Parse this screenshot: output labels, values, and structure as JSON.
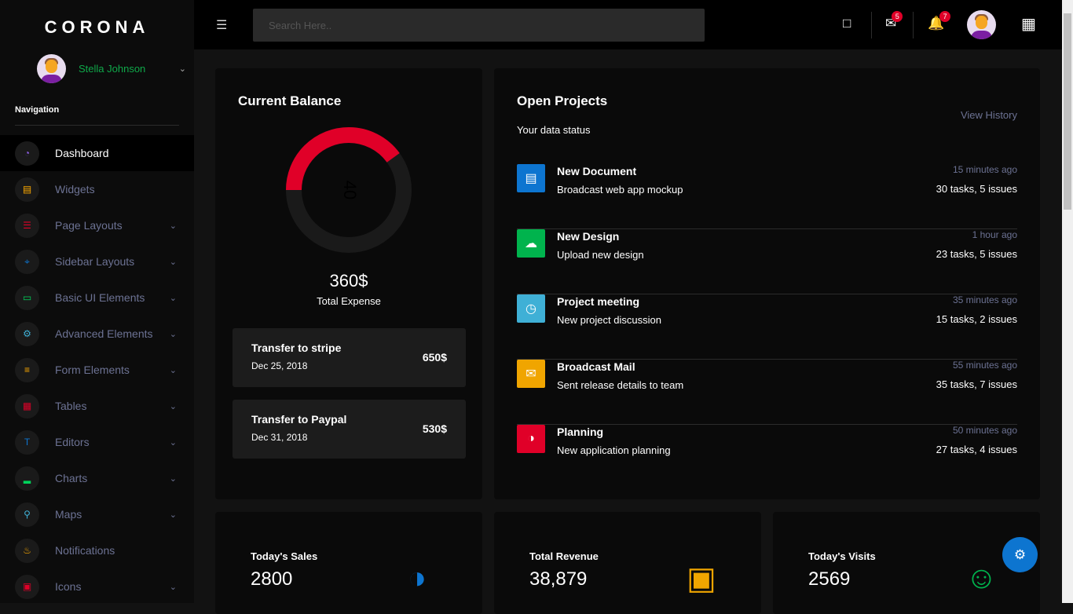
{
  "sidebar": {
    "brand": "CORONA",
    "user_name": "Stella Johnson",
    "nav_title": "Navigation",
    "items": [
      {
        "label": "Dashboard",
        "icon": "speedometer-icon",
        "color": "#8f5fe8",
        "active": true
      },
      {
        "label": "Widgets",
        "icon": "widgets-icon",
        "color": "#ffab00"
      },
      {
        "label": "Page Layouts",
        "icon": "layouts-icon",
        "color": "#e00028"
      },
      {
        "label": "Sidebar Layouts",
        "icon": "crosshair-icon",
        "color": "#0d75d0"
      },
      {
        "label": "Basic UI Elements",
        "icon": "laptop-icon",
        "color": "#00d25b"
      },
      {
        "label": "Advanced Elements",
        "icon": "gear-icon",
        "color": "#3fb0d6"
      },
      {
        "label": "Form Elements",
        "icon": "form-icon",
        "color": "#ffab00"
      },
      {
        "label": "Tables",
        "icon": "table-icon",
        "color": "#e00028"
      },
      {
        "label": "Editors",
        "icon": "text-icon",
        "color": "#0d75d0"
      },
      {
        "label": "Charts",
        "icon": "chart-icon",
        "color": "#00d25b"
      },
      {
        "label": "Maps",
        "icon": "map-pin-icon",
        "color": "#3fb0d6"
      },
      {
        "label": "Notifications",
        "icon": "bell-icon",
        "color": "#ffab00"
      },
      {
        "label": "Icons",
        "icon": "contacts-icon",
        "color": "#e00028"
      }
    ]
  },
  "header": {
    "search_placeholder": "Search Here..",
    "mail_count": "5",
    "notification_count": "7"
  },
  "balance": {
    "title": "Current Balance",
    "donut_value": "40",
    "donut_percent": 40,
    "donut_color": "#e00028",
    "total": "360$",
    "total_label": "Total Expense",
    "transfers": [
      {
        "title": "Transfer to stripe",
        "date": "Dec 25, 2018",
        "amount": "650$"
      },
      {
        "title": "Transfer to Paypal",
        "date": "Dec 31, 2018",
        "amount": "530$"
      }
    ]
  },
  "projects": {
    "title": "Open Projects",
    "subtitle": "Your data status",
    "view_history": "View History",
    "items": [
      {
        "title": "New Document",
        "subtitle": "Broadcast web app mockup",
        "time": "15 minutes ago",
        "stats": "30 tasks, 5 issues",
        "icon": "document-icon",
        "color": "#0d75d0"
      },
      {
        "title": "New Design",
        "subtitle": "Upload new design",
        "time": "1 hour ago",
        "stats": "23 tasks, 5 issues",
        "icon": "cloud-upload-icon",
        "color": "#00b34d"
      },
      {
        "title": "Project meeting",
        "subtitle": "New project discussion",
        "time": "35 minutes ago",
        "stats": "15 tasks, 2 issues",
        "icon": "clock-icon",
        "color": "#3fb0d6"
      },
      {
        "title": "Broadcast Mail",
        "subtitle": "Sent release details to team",
        "time": "55 minutes ago",
        "stats": "35 tasks, 7 issues",
        "icon": "mail-icon",
        "color": "#f0a500"
      },
      {
        "title": "Planning",
        "subtitle": "New application planning",
        "time": "50 minutes ago",
        "stats": "27 tasks, 4 issues",
        "icon": "pie-icon",
        "color": "#e00028"
      }
    ]
  },
  "stats": [
    {
      "label": "Today's Sales",
      "value": "2800",
      "icon": "pie-chart-icon",
      "color": "#0d75d0"
    },
    {
      "label": "Total Revenue",
      "value": "38,879",
      "icon": "cash-icon",
      "color": "#f0a500"
    },
    {
      "label": "Today's Visits",
      "value": "2569",
      "icon": "account-icon",
      "color": "#00b34d"
    }
  ]
}
